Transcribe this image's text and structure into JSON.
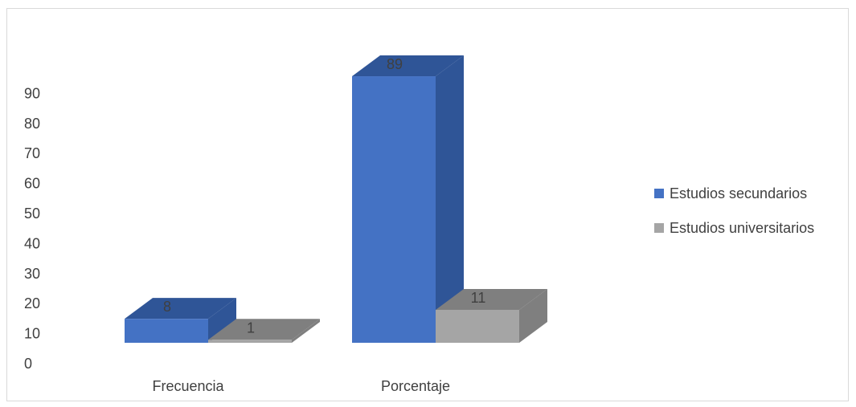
{
  "chart_data": {
    "type": "bar",
    "categories": [
      "Frecuencia",
      "Porcentaje"
    ],
    "series": [
      {
        "name": "Estudios secundarios",
        "values": [
          8,
          89
        ],
        "color": "#4472c4"
      },
      {
        "name": "Estudios universitarios",
        "values": [
          1,
          11
        ],
        "color": "#a5a5a5"
      }
    ],
    "data_labels": [
      [
        "8",
        "1"
      ],
      [
        "89",
        "11"
      ]
    ],
    "y_ticks": [
      "0",
      "10",
      "20",
      "30",
      "40",
      "50",
      "60",
      "70",
      "80",
      "90"
    ],
    "ylim": [
      0,
      90
    ],
    "grid": false,
    "legend_position": "right",
    "three_d": true
  },
  "colors": {
    "secundarios_front": "#4472c4",
    "secundarios_dark": "#2f5597",
    "universitarios_front": "#a5a5a5",
    "universitarios_dark": "#7f7f7f"
  }
}
